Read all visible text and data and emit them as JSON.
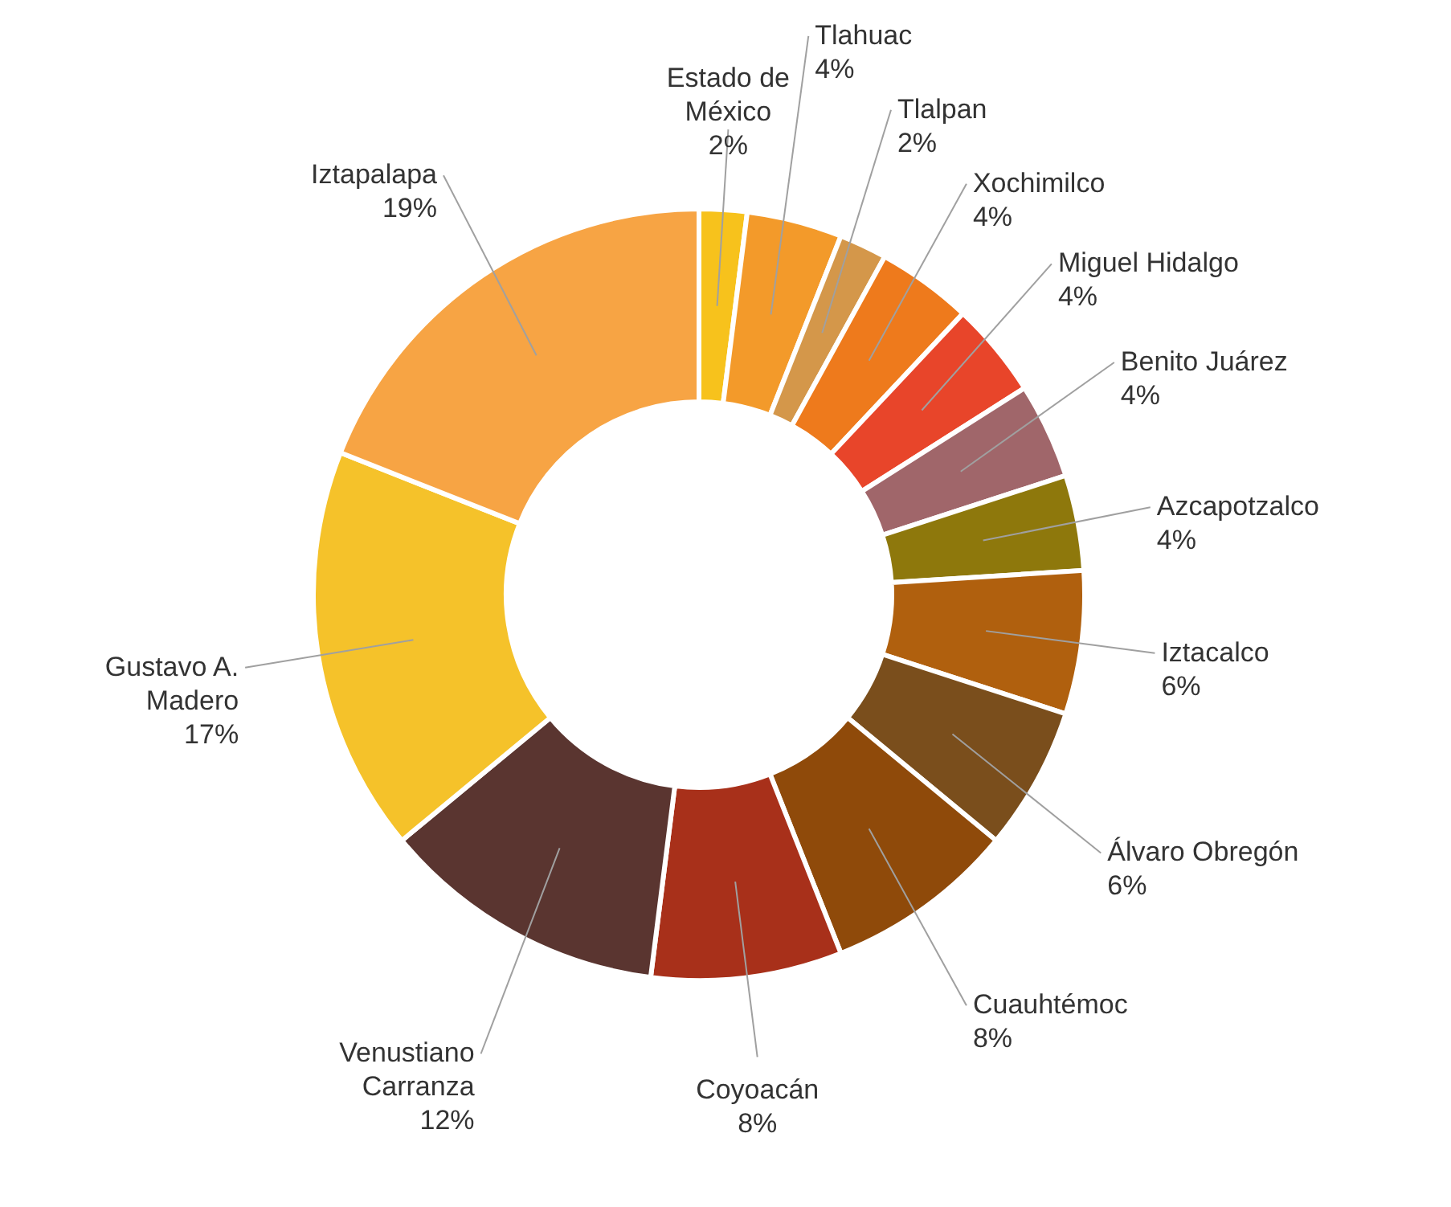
{
  "chart_data": {
    "type": "donut",
    "categories": [
      "Estado de México",
      "Tlahuac",
      "Tlalpan",
      "Xochimilco",
      "Miguel Hidalgo",
      "Benito Juárez",
      "Azcapotzalco",
      "Iztacalco",
      "Álvaro Obregón",
      "Cuauhtémoc",
      "Coyoacán",
      "Venustiano Carranza",
      "Gustavo A. Madero",
      "Iztapalapa"
    ],
    "values": [
      2,
      4,
      2,
      4,
      4,
      4,
      4,
      6,
      6,
      8,
      8,
      12,
      17,
      19
    ],
    "value_labels": [
      "2%",
      "4%",
      "2%",
      "4%",
      "4%",
      "4%",
      "4%",
      "6%",
      "6%",
      "8%",
      "8%",
      "12%",
      "17%",
      "19%"
    ],
    "colors": [
      "#f7c21c",
      "#f39a2a",
      "#d4974a",
      "#ee7a1c",
      "#e8452a",
      "#a0666a",
      "#8e780c",
      "#b0600e",
      "#7a4e1c",
      "#8f4a0a",
      "#a8301a",
      "#5a3530",
      "#f5c22a",
      "#f7a444"
    ],
    "legend": false
  }
}
